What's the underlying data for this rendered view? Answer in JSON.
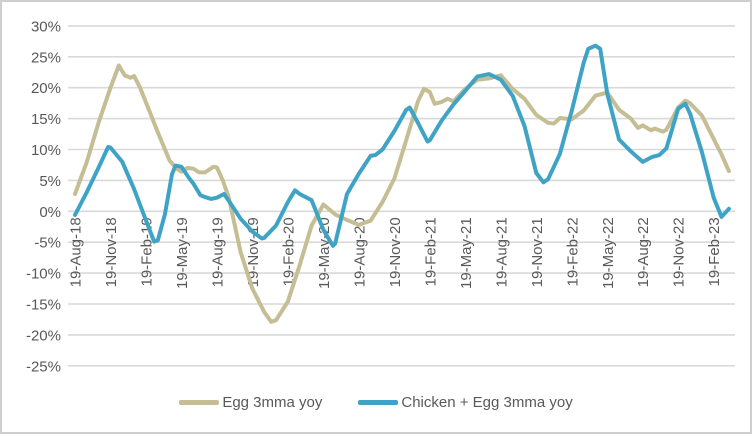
{
  "chart_data": {
    "type": "line",
    "title": "",
    "xlabel": "",
    "ylabel": "",
    "grid": "horizontal",
    "legend_position": "bottom-center",
    "ylim": [
      -25,
      30
    ],
    "y_ticks": [
      30,
      25,
      20,
      15,
      10,
      5,
      0,
      -5,
      -10,
      -15,
      -20,
      -25
    ],
    "y_tick_suffix": "%",
    "x_unit": "month index (0 = 19-Aug-18, 1 month per step, ticks every 3 months)",
    "x_tick_step": 3,
    "x_tick_labels": [
      "19-Aug-18",
      "19-Nov-18",
      "19-Feb-19",
      "19-May-19",
      "19-Aug-19",
      "19-Nov-19",
      "19-Feb-20",
      "19-May-20",
      "19-Aug-20",
      "19-Nov-20",
      "19-Feb-21",
      "19-May-21",
      "19-Aug-21",
      "19-Nov-21",
      "19-Feb-22",
      "19-May-22",
      "19-Aug-22",
      "19-Nov-22",
      "19-Feb-23"
    ],
    "colors": {
      "egg": "#C5BD93",
      "chicken_egg": "#3FA3C6",
      "gridline": "#D9D9D9",
      "axis_text": "#595959"
    },
    "series": [
      {
        "name": "Egg 3mma yoy",
        "color": "#C5BD93",
        "points": [
          [
            0,
            2.8
          ],
          [
            1,
            8.0
          ],
          [
            2,
            14.4
          ],
          [
            3,
            20.0
          ],
          [
            3.7,
            23.6
          ],
          [
            4.2,
            22.0
          ],
          [
            4.7,
            21.6
          ],
          [
            5,
            21.9
          ],
          [
            5.5,
            20.0
          ],
          [
            6,
            17.6
          ],
          [
            7,
            12.8
          ],
          [
            8,
            8.2
          ],
          [
            8.6,
            6.9
          ],
          [
            9,
            6.4
          ],
          [
            9.5,
            7.0
          ],
          [
            10,
            6.9
          ],
          [
            10.5,
            6.3
          ],
          [
            11,
            6.3
          ],
          [
            11.7,
            7.2
          ],
          [
            12,
            7.1
          ],
          [
            12.5,
            5.0
          ],
          [
            13,
            2.2
          ],
          [
            14,
            -6.6
          ],
          [
            15,
            -12.5
          ],
          [
            16,
            -16.3
          ],
          [
            16.6,
            -17.9
          ],
          [
            17,
            -17.6
          ],
          [
            18,
            -14.6
          ],
          [
            19,
            -8.7
          ],
          [
            20,
            -2.3
          ],
          [
            21,
            1.1
          ],
          [
            22,
            -0.5
          ],
          [
            23,
            -1.4
          ],
          [
            24,
            -2.2
          ],
          [
            25,
            -1.5
          ],
          [
            26,
            1.5
          ],
          [
            27,
            5.3
          ],
          [
            28,
            11.5
          ],
          [
            29,
            17.8
          ],
          [
            29.5,
            19.8
          ],
          [
            30,
            19.3
          ],
          [
            30.4,
            17.4
          ],
          [
            31,
            17.7
          ],
          [
            31.5,
            18.2
          ],
          [
            32,
            17.8
          ],
          [
            33,
            19.8
          ],
          [
            34,
            21.3
          ],
          [
            35,
            21.5
          ],
          [
            36,
            22.0
          ],
          [
            37,
            19.8
          ],
          [
            38,
            18.2
          ],
          [
            39,
            15.6
          ],
          [
            40,
            14.3
          ],
          [
            40.5,
            14.2
          ],
          [
            41,
            15.1
          ],
          [
            42,
            14.9
          ],
          [
            43,
            16.3
          ],
          [
            44,
            18.7
          ],
          [
            45,
            19.2
          ],
          [
            46,
            16.4
          ],
          [
            47,
            15.0
          ],
          [
            47.6,
            13.5
          ],
          [
            48,
            13.9
          ],
          [
            48.7,
            13.1
          ],
          [
            49,
            13.4
          ],
          [
            49.7,
            12.9
          ],
          [
            50,
            13.2
          ],
          [
            51,
            16.8
          ],
          [
            51.6,
            17.9
          ],
          [
            52,
            17.5
          ],
          [
            53,
            15.5
          ],
          [
            54,
            11.7
          ],
          [
            54.66,
            9.2
          ],
          [
            55.28,
            6.5
          ]
        ]
      },
      {
        "name": "Chicken + Egg 3mma yoy",
        "color": "#3FA3C6",
        "points": [
          [
            0,
            -0.6
          ],
          [
            1,
            3.1
          ],
          [
            2,
            7.1
          ],
          [
            2.8,
            10.4
          ],
          [
            3,
            10.3
          ],
          [
            4,
            8.0
          ],
          [
            5,
            3.6
          ],
          [
            6,
            -1.5
          ],
          [
            6.7,
            -4.9
          ],
          [
            7,
            -4.7
          ],
          [
            7.6,
            -0.5
          ],
          [
            8.2,
            6.0
          ],
          [
            8.5,
            7.4
          ],
          [
            9,
            7.2
          ],
          [
            9.6,
            5.5
          ],
          [
            10,
            4.5
          ],
          [
            10.6,
            2.6
          ],
          [
            11,
            2.3
          ],
          [
            11.5,
            2.0
          ],
          [
            12,
            2.2
          ],
          [
            12.6,
            2.8
          ],
          [
            13,
            1.7
          ],
          [
            14,
            -1.2
          ],
          [
            15,
            -3.3
          ],
          [
            15.8,
            -4.4
          ],
          [
            16,
            -4.3
          ],
          [
            17,
            -2.3
          ],
          [
            18,
            1.5
          ],
          [
            18.6,
            3.4
          ],
          [
            19,
            2.8
          ],
          [
            20,
            1.8
          ],
          [
            21,
            -3.0
          ],
          [
            21.8,
            -5.6
          ],
          [
            22,
            -5.2
          ],
          [
            23,
            2.8
          ],
          [
            24,
            6.1
          ],
          [
            25,
            9.0
          ],
          [
            25.4,
            9.1
          ],
          [
            26,
            10.0
          ],
          [
            27,
            13.0
          ],
          [
            28,
            16.4
          ],
          [
            28.3,
            16.8
          ],
          [
            29,
            14.3
          ],
          [
            29.8,
            11.3
          ],
          [
            30,
            11.5
          ],
          [
            31,
            14.7
          ],
          [
            32,
            17.3
          ],
          [
            33,
            19.5
          ],
          [
            34,
            21.8
          ],
          [
            35,
            22.2
          ],
          [
            36,
            21.3
          ],
          [
            37,
            18.7
          ],
          [
            38,
            13.8
          ],
          [
            39,
            6.2
          ],
          [
            39.6,
            4.7
          ],
          [
            40,
            5.2
          ],
          [
            41,
            9.3
          ],
          [
            42,
            16.3
          ],
          [
            43,
            24.0
          ],
          [
            43.4,
            26.3
          ],
          [
            44,
            26.8
          ],
          [
            44.4,
            26.3
          ],
          [
            45,
            19.0
          ],
          [
            46,
            11.6
          ],
          [
            47,
            9.7
          ],
          [
            48,
            8.0
          ],
          [
            48.8,
            8.8
          ],
          [
            49.4,
            9.1
          ],
          [
            50,
            10.2
          ],
          [
            51,
            16.6
          ],
          [
            51.6,
            17.4
          ],
          [
            52,
            15.8
          ],
          [
            53,
            9.6
          ],
          [
            54,
            2.2
          ],
          [
            54.66,
            -0.9
          ],
          [
            55.28,
            0.4
          ]
        ]
      }
    ],
    "legend": {
      "items": [
        {
          "label": "Egg 3mma yoy"
        },
        {
          "label": "Chicken + Egg 3mma yoy"
        }
      ]
    }
  }
}
